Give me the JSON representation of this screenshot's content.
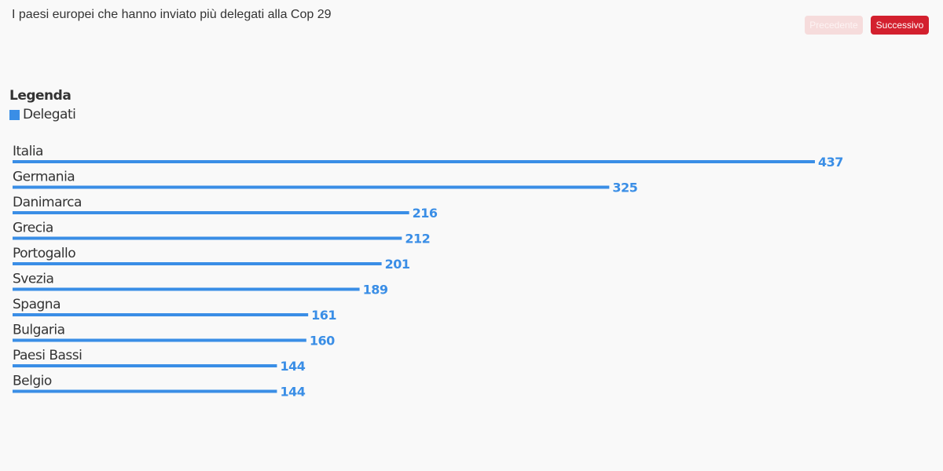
{
  "header": {
    "title": "I paesi europei che hanno inviato più delegati alla Cop 29",
    "prev_label": "Precedente",
    "next_label": "Successivo"
  },
  "legend": {
    "title": "Legenda",
    "items": [
      {
        "label": "Delegati",
        "color": "#3a8ee6"
      }
    ]
  },
  "chart_data": {
    "type": "bar",
    "orientation": "horizontal",
    "categories": [
      "Italia",
      "Germania",
      "Danimarca",
      "Grecia",
      "Portogallo",
      "Svezia",
      "Spagna",
      "Bulgaria",
      "Paesi Bassi",
      "Belgio"
    ],
    "series": [
      {
        "name": "Delegati",
        "values": [
          437,
          325,
          216,
          212,
          201,
          189,
          161,
          160,
          144,
          144
        ],
        "color": "#3a8ee6"
      }
    ],
    "xlim": [
      0,
      437
    ],
    "grid": false,
    "legend_position": "top-left",
    "data_labels": true
  }
}
